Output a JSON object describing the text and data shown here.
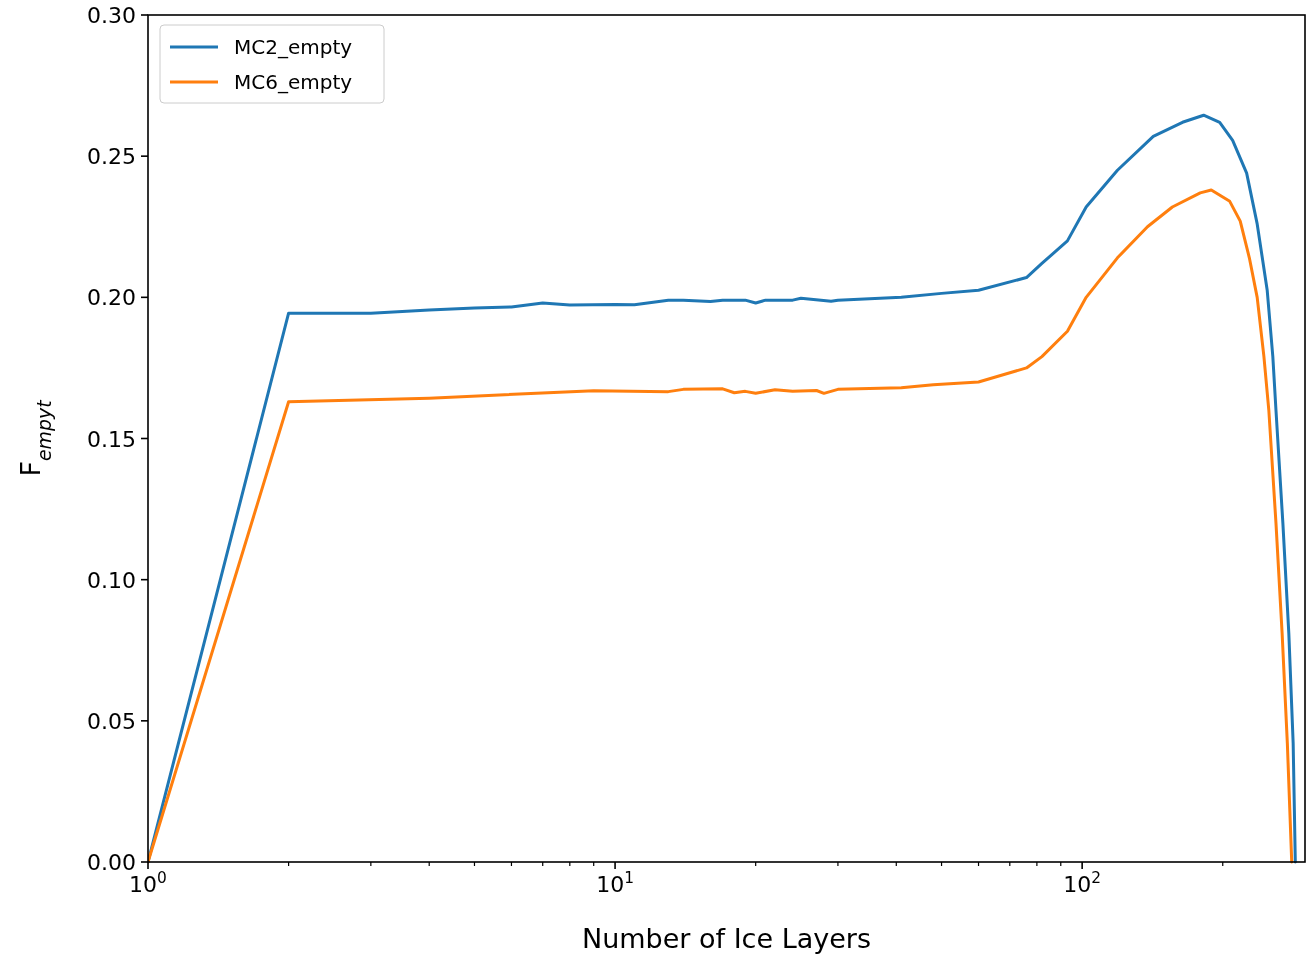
{
  "chart_data": {
    "type": "line",
    "xlabel": "Number of Ice Layers",
    "ylabel": "F$_{empyt}$",
    "log": "x",
    "xlim": [
      1,
      300
    ],
    "ylim": [
      0,
      0.3
    ],
    "xticks": [
      {
        "value": 1,
        "label": "10$^{0}$"
      },
      {
        "value": 2,
        "label": null
      },
      {
        "value": 3,
        "label": null
      },
      {
        "value": 4,
        "label": null
      },
      {
        "value": 5,
        "label": null
      },
      {
        "value": 6,
        "label": null
      },
      {
        "value": 7,
        "label": null
      },
      {
        "value": 8,
        "label": null
      },
      {
        "value": 9,
        "label": null
      },
      {
        "value": 10,
        "label": "10$^{1}$"
      },
      {
        "value": 20,
        "label": null
      },
      {
        "value": 30,
        "label": null
      },
      {
        "value": 40,
        "label": null
      },
      {
        "value": 50,
        "label": null
      },
      {
        "value": 60,
        "label": null
      },
      {
        "value": 70,
        "label": null
      },
      {
        "value": 80,
        "label": null
      },
      {
        "value": 90,
        "label": null
      },
      {
        "value": 100,
        "label": "10$^{2}$"
      },
      {
        "value": 200,
        "label": null
      }
    ],
    "yticks": [
      {
        "value": 0,
        "label": "0.00"
      },
      {
        "value": 0.05,
        "label": "0.05"
      },
      {
        "value": 0.1,
        "label": "0.10"
      },
      {
        "value": 0.15,
        "label": "0.15"
      },
      {
        "value": 0.2,
        "label": "0.20"
      },
      {
        "value": 0.25,
        "label": "0.25"
      },
      {
        "value": 0.3,
        "label": "0.30"
      }
    ],
    "legend": "top left",
    "grid": false,
    "marker": "none",
    "line_style": "solid",
    "series": [
      {
        "name": "MC2_empty",
        "color": "#1f77b4",
        "x": [
          1,
          2,
          3,
          4,
          5,
          6,
          7,
          8,
          10,
          11,
          13,
          14,
          16,
          17,
          19,
          20,
          21,
          24,
          25,
          29,
          30,
          41,
          50,
          60,
          76,
          82,
          93,
          102,
          119,
          142,
          164,
          182,
          197,
          210,
          225,
          237,
          249,
          256,
          260,
          269,
          277,
          283,
          286
        ],
        "values": [
          0,
          0.1944,
          0.1944,
          0.1955,
          0.1962,
          0.1966,
          0.198,
          0.1973,
          0.1975,
          0.1974,
          0.199,
          0.199,
          0.1985,
          0.199,
          0.199,
          0.198,
          0.199,
          0.199,
          0.1997,
          0.1986,
          0.199,
          0.2,
          0.2014,
          0.2025,
          0.207,
          0.212,
          0.22,
          0.232,
          0.245,
          0.257,
          0.262,
          0.2645,
          0.262,
          0.2556,
          0.244,
          0.226,
          0.2025,
          0.179,
          0.16,
          0.12,
          0.081,
          0.042,
          0
        ]
      },
      {
        "name": "MC6_empty",
        "color": "#ff7f0e",
        "x": [
          1,
          2,
          4,
          9,
          13,
          14,
          17,
          18,
          19,
          20,
          22,
          24,
          27,
          28,
          30,
          41,
          48,
          60,
          76,
          82,
          93,
          102,
          119,
          138,
          156,
          179,
          189,
          207,
          218,
          228,
          237,
          245,
          251,
          260,
          268,
          275,
          281
        ],
        "values": [
          0,
          0.163,
          0.1643,
          0.1669,
          0.1666,
          0.1674,
          0.1676,
          0.1662,
          0.1667,
          0.166,
          0.1673,
          0.1667,
          0.167,
          0.166,
          0.1674,
          0.168,
          0.169,
          0.17,
          0.175,
          0.179,
          0.188,
          0.2,
          0.214,
          0.225,
          0.232,
          0.237,
          0.238,
          0.234,
          0.227,
          0.214,
          0.2,
          0.179,
          0.16,
          0.12,
          0.081,
          0.042,
          0
        ]
      }
    ]
  }
}
